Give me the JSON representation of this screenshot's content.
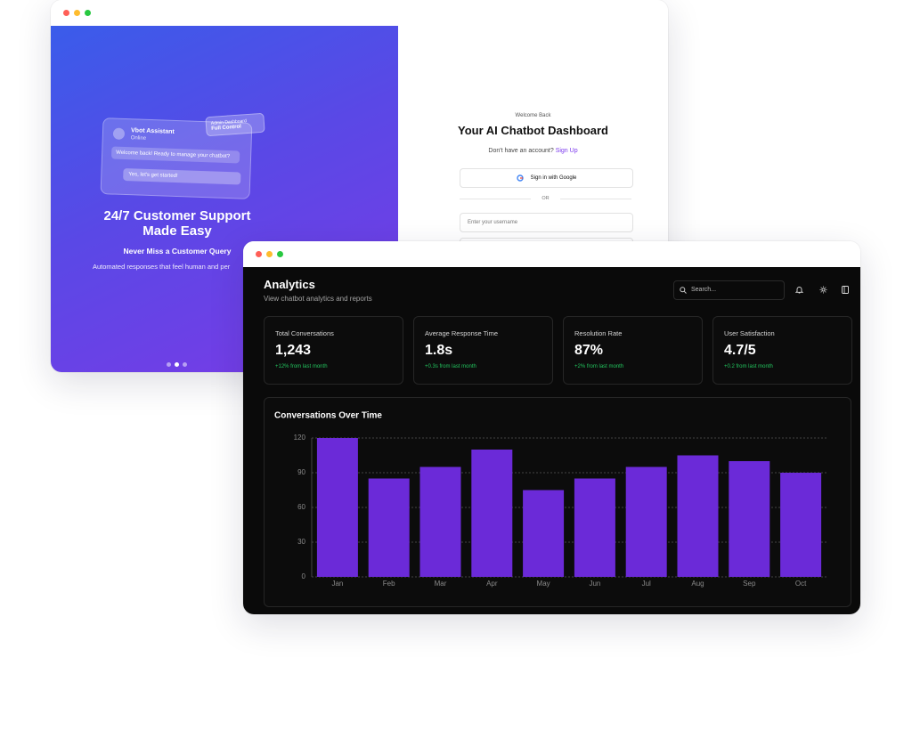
{
  "login_window": {
    "hero": {
      "card": {
        "name": "Vbot Assistant",
        "status": "Online",
        "badge_title": "Admin Dashboard",
        "badge_subtitle": "Full Control",
        "bot_message": "Welcome back! Ready to manage your chatbot?",
        "user_message": "Yes, let's get started!"
      },
      "title": "24/7 Customer Support Made Easy",
      "subtitle": "Never Miss a Customer Query",
      "description": "Automated responses that feel human and per"
    },
    "form": {
      "eyebrow": "Welcome Back",
      "title": "Your AI Chatbot Dashboard",
      "signup_prompt": "Don't have an account?",
      "signup_link": "Sign Up",
      "google_button": "Sign in with Google",
      "divider": "OR",
      "username_placeholder": "Enter your username"
    }
  },
  "dashboard": {
    "header": {
      "title": "Analytics",
      "subtitle": "View chatbot analytics and reports",
      "search_placeholder": "Search..."
    },
    "stats": [
      {
        "label": "Total Conversations",
        "value": "1,243",
        "change": "+12% from last month"
      },
      {
        "label": "Average Response Time",
        "value": "1.8s",
        "change": "+0.3s from last month"
      },
      {
        "label": "Resolution Rate",
        "value": "87%",
        "change": "+2% from last month"
      },
      {
        "label": "User Satisfaction",
        "value": "4.7/5",
        "change": "+0.2 from last month"
      }
    ]
  },
  "chart_data": {
    "type": "bar",
    "title": "Conversations Over Time",
    "categories": [
      "Jan",
      "Feb",
      "Mar",
      "Apr",
      "May",
      "Jun",
      "Jul",
      "Aug",
      "Sep",
      "Oct"
    ],
    "values": [
      120,
      85,
      95,
      110,
      75,
      85,
      95,
      105,
      100,
      90
    ],
    "color": "#6b2ad8",
    "ylim": [
      0,
      120
    ],
    "yticks": [
      0,
      30,
      60,
      90,
      120
    ],
    "grid": true
  }
}
